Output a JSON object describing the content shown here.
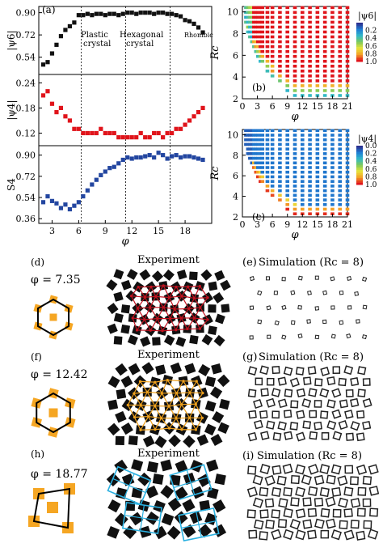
{
  "colors": {
    "panel_a_series": "#111111",
    "panel_b_series": "#e0141b",
    "panel_c_series": "#2346a0",
    "colormap": [
      "#2b2f8f",
      "#1e7ed4",
      "#31b9c9",
      "#7dc95a",
      "#e8e43a",
      "#f4a025",
      "#e0141b"
    ],
    "lattice_red": "#c0121f",
    "lattice_orange": "#f0a21d",
    "lattice_blue": "#2ab0e0",
    "particle_orange": "#f5a623"
  },
  "labels": {
    "a": "(a)",
    "b": "(b)",
    "c": "(c)",
    "d": "(d)",
    "e": "(e)",
    "f": "(f)",
    "g": "(g)",
    "h": "(h)",
    "i": "(i)",
    "phase_plastic_1": "Plastic",
    "phase_plastic_2": "crystal",
    "phase_hex_1": "Hexagonal",
    "phase_hex_2": "crystal",
    "phase_rhombic": "Rhombic",
    "ylabel_a": "|ψ₆|",
    "ylabel_b": "|ψ₄|",
    "ylabel_c": "S₄",
    "xlabel_left": "φ",
    "xlabel_right_b": "φ",
    "xlabel_right_c": "φ",
    "ylabel_rc_b": "Rc",
    "ylabel_rc_c": "Rc",
    "cbar_title_b": "|ψ₆|",
    "cbar_title_c": "|ψ₄|",
    "experiment_1": "Experiment",
    "experiment_2": "Experiment",
    "experiment_3": "Experiment",
    "simulation_1": "Simulation (Rc = 8)",
    "simulation_2": "Simulation (Rc = 8)",
    "simulation_3": "Simulation (Rc = 8)",
    "phi_d": "φ = 7.35",
    "phi_f": "φ = 12.42",
    "phi_h": "φ = 18.77"
  },
  "chart_data": [
    {
      "type": "scatter",
      "panel": "(a) top",
      "ylabel": "|ψ6|",
      "yticks": [
        "0.90",
        "0.72",
        "0.54"
      ],
      "ylim": [
        0.4,
        0.95
      ],
      "xlim": [
        1.5,
        21
      ],
      "x": [
        2,
        2.5,
        3,
        3.5,
        4,
        4.5,
        5,
        5.5,
        6,
        6.5,
        7,
        7.5,
        8,
        8.5,
        9,
        9.5,
        10,
        10.5,
        11,
        11.5,
        12,
        12.5,
        13,
        13.5,
        14,
        14.5,
        15,
        15.5,
        16,
        16.5,
        17,
        17.5,
        18,
        18.5,
        19,
        19.5,
        20
      ],
      "y": [
        0.48,
        0.5,
        0.57,
        0.64,
        0.71,
        0.76,
        0.79,
        0.82,
        0.88,
        0.88,
        0.89,
        0.88,
        0.89,
        0.89,
        0.88,
        0.89,
        0.89,
        0.88,
        0.89,
        0.9,
        0.9,
        0.89,
        0.9,
        0.9,
        0.9,
        0.89,
        0.9,
        0.9,
        0.89,
        0.89,
        0.88,
        0.87,
        0.84,
        0.83,
        0.81,
        0.78,
        0.74
      ],
      "vlines": [
        6.3,
        11.3,
        16.3
      ]
    },
    {
      "type": "scatter",
      "panel": "(a) middle",
      "ylabel": "|ψ4|",
      "yticks": [
        "0.24",
        "0.18",
        "0.12"
      ],
      "ylim": [
        0.09,
        0.26
      ],
      "xlim": [
        1.5,
        21
      ],
      "x": [
        2,
        2.5,
        3,
        3.5,
        4,
        4.5,
        5,
        5.5,
        6,
        6.5,
        7,
        7.5,
        8,
        8.5,
        9,
        9.5,
        10,
        10.5,
        11,
        11.5,
        12,
        12.5,
        13,
        13.5,
        14,
        14.5,
        15,
        15.5,
        16,
        16.5,
        17,
        17.5,
        18,
        18.5,
        19,
        19.5,
        20
      ],
      "y": [
        0.21,
        0.22,
        0.19,
        0.17,
        0.18,
        0.16,
        0.15,
        0.13,
        0.13,
        0.12,
        0.12,
        0.12,
        0.12,
        0.13,
        0.12,
        0.12,
        0.12,
        0.11,
        0.11,
        0.11,
        0.11,
        0.11,
        0.12,
        0.11,
        0.11,
        0.12,
        0.12,
        0.11,
        0.12,
        0.12,
        0.13,
        0.13,
        0.14,
        0.15,
        0.16,
        0.17,
        0.18
      ],
      "vlines": [
        6.3,
        11.3,
        16.3
      ]
    },
    {
      "type": "scatter",
      "panel": "(a) bottom",
      "ylabel": "S4",
      "xlabel": "φ",
      "yticks": [
        "0.90",
        "0.72",
        "0.54",
        "0.36"
      ],
      "xticks": [
        "3",
        "6",
        "9",
        "12",
        "15",
        "18"
      ],
      "ylim": [
        0.32,
        0.98
      ],
      "xlim": [
        1.5,
        21
      ],
      "x": [
        2,
        2.5,
        3,
        3.5,
        4,
        4.5,
        5,
        5.5,
        6,
        6.5,
        7,
        7.5,
        8,
        8.5,
        9,
        9.5,
        10,
        10.5,
        11,
        11.5,
        12,
        12.5,
        13,
        13.5,
        14,
        14.5,
        15,
        15.5,
        16,
        16.5,
        17,
        17.5,
        18,
        18.5,
        19,
        19.5,
        20
      ],
      "y": [
        0.5,
        0.55,
        0.51,
        0.49,
        0.45,
        0.48,
        0.44,
        0.47,
        0.5,
        0.55,
        0.6,
        0.65,
        0.69,
        0.73,
        0.76,
        0.79,
        0.8,
        0.83,
        0.86,
        0.88,
        0.87,
        0.88,
        0.88,
        0.89,
        0.9,
        0.88,
        0.92,
        0.9,
        0.87,
        0.89,
        0.9,
        0.88,
        0.89,
        0.89,
        0.88,
        0.87,
        0.86
      ],
      "vlines": [
        6.3,
        11.3,
        16.3
      ]
    },
    {
      "type": "heatmap",
      "panel": "(b)",
      "ylabel": "Rc",
      "xlabel": "φ",
      "xticks": [
        "0",
        "3",
        "6",
        "9",
        "12",
        "15",
        "18",
        "21"
      ],
      "yticks": [
        "10",
        "8",
        "6",
        "4",
        "2"
      ],
      "xlim": [
        0,
        21
      ],
      "ylim": [
        2,
        10.5
      ],
      "colorbar_title": "|ψ6|",
      "colorbar_ticks": [
        "0.2",
        "0.4",
        "0.6",
        "0.8",
        "1.0"
      ],
      "colorbar_range": [
        0.0,
        1.0
      ],
      "columns_phi": [
        0.6,
        1,
        1.4,
        1.8,
        2.2,
        2.6,
        3,
        3.5,
        4,
        5,
        6,
        7.5,
        9,
        10.5,
        12,
        13.5,
        15,
        16.5,
        18,
        19.5,
        21
      ],
      "mode": "psi6"
    },
    {
      "type": "heatmap",
      "panel": "(c)",
      "ylabel": "Rc",
      "xlabel": "φ",
      "xticks": [
        "0",
        "3",
        "6",
        "9",
        "12",
        "15",
        "18",
        "21"
      ],
      "yticks": [
        "10",
        "8",
        "6",
        "4",
        "2"
      ],
      "xlim": [
        0,
        21
      ],
      "ylim": [
        2,
        10.5
      ],
      "colorbar_title": "|ψ4|",
      "colorbar_ticks": [
        "0.0",
        "0.2",
        "0.4",
        "0.6",
        "0.8",
        "1.0"
      ],
      "colorbar_range": [
        0.0,
        1.0
      ],
      "columns_phi": [
        0.6,
        1,
        1.4,
        1.8,
        2.2,
        2.6,
        3,
        3.5,
        4,
        5,
        6,
        7.5,
        9,
        10.5,
        12,
        13.5,
        15,
        16.5,
        18,
        19.5,
        21
      ],
      "mode": "psi4"
    }
  ]
}
